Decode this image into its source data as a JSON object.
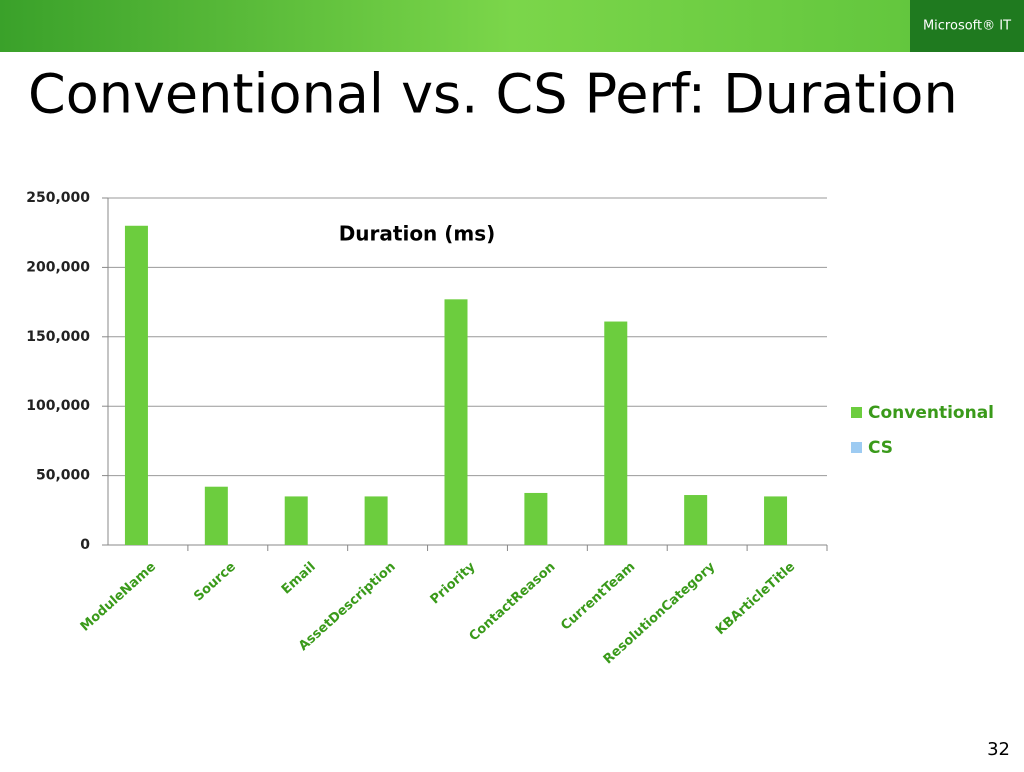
{
  "logo": "Microsoft® IT",
  "title": "Conventional vs. CS Perf: Duration",
  "page_number": "32",
  "chart_data": {
    "type": "bar",
    "title": "Duration (ms)",
    "categories": [
      "ModuleName",
      "Source",
      "Email",
      "AssetDescription",
      "Priority",
      "ContactReason",
      "CurrentTeam",
      "ResolutionCategory",
      "KBArticleTitle"
    ],
    "series": [
      {
        "name": "Conventional",
        "color": "#6ccd3e",
        "values": [
          230000,
          42000,
          35000,
          35000,
          177000,
          37500,
          161000,
          36000,
          35000
        ]
      },
      {
        "name": "CS",
        "color": "#9dcbf2",
        "values": [
          0,
          0,
          0,
          0,
          0,
          0,
          0,
          0,
          0
        ]
      }
    ],
    "ylim": [
      0,
      250000
    ],
    "yticks": [
      0,
      {
        "value": 50000,
        "label": "50,000"
      },
      {
        "value": 100000,
        "label": "100,000"
      },
      {
        "value": 150000,
        "label": "150,000"
      },
      {
        "value": 200000,
        "label": "200,000"
      },
      {
        "value": 250000,
        "label": "250,000"
      }
    ],
    "grid": true,
    "legend": "right"
  }
}
